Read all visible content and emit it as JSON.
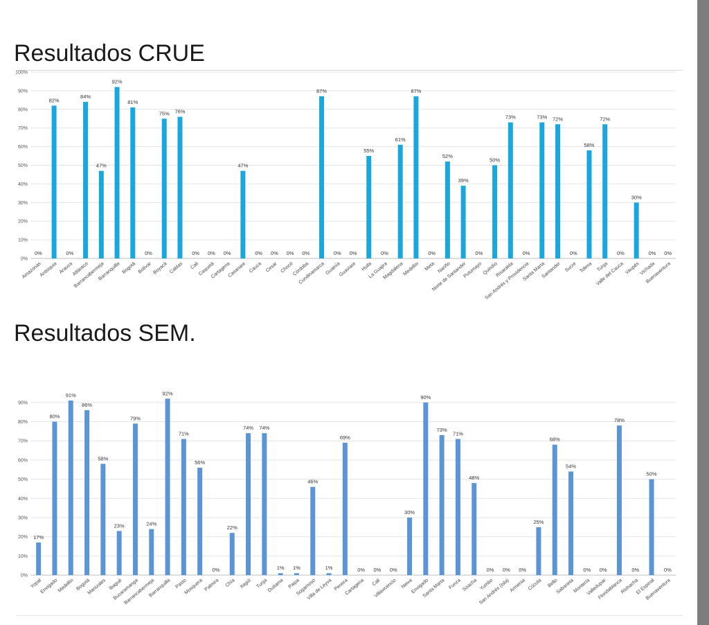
{
  "heading1": "Resultados CRUE",
  "heading2": "Resultados SEM.",
  "chart_data": [
    {
      "type": "bar",
      "title": "Resultados CRUE",
      "color": "#1aa7de",
      "ylim": [
        0,
        100
      ],
      "yticks": [
        "0%",
        "10%",
        "20%",
        "30%",
        "40%",
        "50%",
        "60%",
        "70%",
        "80%",
        "90%",
        "100%"
      ],
      "grid": true,
      "categories": [
        "Amazonas",
        "Antioquia",
        "Arauca",
        "Atlántico",
        "Barrancabermeja",
        "Barranquilla",
        "Bogotá",
        "Bolívar",
        "Boyacá",
        "Caldas",
        "Cali",
        "Caquetá",
        "Cartagena",
        "Casanare",
        "Cauca",
        "Cesar",
        "Chocó",
        "Córdoba",
        "Cundinamarca",
        "Guainía",
        "Guaviare",
        "Huila",
        "La Guajira",
        "Magdalena",
        "Medellín",
        "Meta",
        "Nariño",
        "Norte de Santander",
        "Putumayo",
        "Quindío",
        "Risaralda",
        "San Andrés y Providencia",
        "Santa Marta",
        "Santander",
        "Sucre",
        "Tolima",
        "Tunja",
        "Valle del Cauca",
        "Vaupés",
        "Vichada",
        "Buenaventura"
      ],
      "values": [
        0,
        82,
        0,
        84,
        47,
        92,
        81,
        0,
        75,
        76,
        0,
        0,
        0,
        47,
        0,
        0,
        0,
        0,
        87,
        0,
        0,
        55,
        0,
        61,
        87,
        0,
        52,
        39,
        0,
        50,
        73,
        0,
        73,
        72,
        0,
        58,
        72,
        0,
        30,
        0,
        0
      ],
      "labels": [
        "0%",
        "82%",
        "0%",
        "84%",
        "47%",
        "92%",
        "81%",
        "0%",
        "75%",
        "76%",
        "0%",
        "0%",
        "0%",
        "47%",
        "0%",
        "0%",
        "0%",
        "0%",
        "87%",
        "0%",
        "0%",
        "55%",
        "0%",
        "61%",
        "87%",
        "0%",
        "52%",
        "39%",
        "0%",
        "50%",
        "73%",
        "0%",
        "73%",
        "72%",
        "0%",
        "58%",
        "72%",
        "0%",
        "30%",
        "0%",
        "0%"
      ]
    },
    {
      "type": "bar",
      "title": "Resultados SEM.",
      "color": "#5b95d5",
      "ylim": [
        0,
        95
      ],
      "yticks": [
        "0%",
        "10%",
        "20%",
        "30%",
        "40%",
        "50%",
        "60%",
        "70%",
        "80%",
        "90%"
      ],
      "grid": true,
      "categories": [
        "Yopal",
        "Envigado",
        "Medellín",
        "Bogotá",
        "Manizales",
        "Ibagué",
        "Bucaramanga",
        "Barrancabermeja",
        "Barranquilla",
        "Pasto",
        "Mosquera",
        "Palmira",
        "Chía",
        "Itagüí",
        "Tunja",
        "Duitama",
        "Paipa",
        "Sogamoso",
        "Villa de Leyva",
        "Pereira",
        "Cartagena",
        "Cali",
        "Villavicencio",
        "Neiva",
        "Envigado",
        "Santa Marta",
        "Funza",
        "Soacha",
        "Yumbo",
        "San Andrés (Isla)",
        "Armenia",
        "Cúcuta",
        "Bello",
        "Sabaneta",
        "Montería",
        "Valledupar",
        "Floridablanca",
        "Riohacha",
        "El Espinal",
        "Buenaventura"
      ],
      "values": [
        17,
        80,
        91,
        86,
        58,
        23,
        79,
        24,
        92,
        71,
        56,
        0,
        22,
        74,
        74,
        1,
        1,
        46,
        1,
        69,
        0,
        0,
        0,
        30,
        90,
        73,
        71,
        48,
        0,
        0,
        0,
        25,
        68,
        54,
        0,
        0,
        78,
        0,
        50,
        0
      ],
      "labels": [
        "17%",
        "80%",
        "91%",
        "86%",
        "58%",
        "23%",
        "79%",
        "24%",
        "92%",
        "71%",
        "56%",
        "0%",
        "22%",
        "74%",
        "74%",
        "1%",
        "1%",
        "46%",
        "1%",
        "69%",
        "0%",
        "0%",
        "0%",
        "30%",
        "90%",
        "73%",
        "71%",
        "48%",
        "0%",
        "0%",
        "0%",
        "25%",
        "68%",
        "54%",
        "0%",
        "0%",
        "78%",
        "0%",
        "50%",
        "0%"
      ]
    }
  ]
}
